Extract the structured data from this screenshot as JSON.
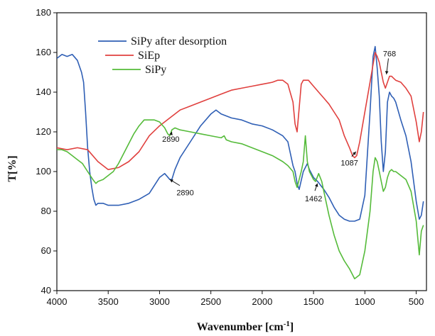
{
  "chart_data": {
    "type": "line",
    "title": "",
    "xlabel": "Wavenumber [cm",
    "xlabel_sup": "-1",
    "xlabel_close": "]",
    "ylabel": "T[%]",
    "xlim": [
      4000,
      400
    ],
    "ylim": [
      40,
      180
    ],
    "x_reversed": true,
    "xticks": [
      4000,
      3500,
      3000,
      2500,
      2000,
      1500,
      1000,
      500
    ],
    "yticks": [
      40,
      60,
      80,
      100,
      120,
      140,
      160,
      180
    ],
    "grid": false,
    "legend_position": "top-left",
    "series": [
      {
        "name": "SiPy after desorption",
        "color": "#2f5fb5",
        "x": [
          4000,
          3950,
          3900,
          3850,
          3800,
          3760,
          3740,
          3720,
          3700,
          3680,
          3660,
          3640,
          3620,
          3600,
          3550,
          3500,
          3400,
          3300,
          3200,
          3100,
          3000,
          2950,
          2900,
          2880,
          2850,
          2800,
          2700,
          2600,
          2500,
          2450,
          2400,
          2300,
          2200,
          2100,
          2000,
          1900,
          1800,
          1750,
          1700,
          1680,
          1660,
          1640,
          1600,
          1560,
          1540,
          1500,
          1460,
          1400,
          1350,
          1300,
          1250,
          1200,
          1150,
          1100,
          1050,
          1000,
          950,
          920,
          900,
          880,
          860,
          840,
          820,
          800,
          780,
          760,
          740,
          720,
          700,
          650,
          600,
          550,
          500,
          470,
          450,
          430
        ],
        "y": [
          157,
          159,
          158,
          159,
          156,
          150,
          145,
          130,
          112,
          100,
          92,
          86,
          83,
          84,
          84,
          83,
          83,
          84,
          86,
          89,
          97,
          99,
          96,
          96,
          101,
          107,
          115,
          123,
          129,
          131,
          129,
          127,
          126,
          124,
          123,
          121,
          118,
          115,
          103,
          100,
          94,
          91,
          100,
          104,
          101,
          97,
          95,
          91,
          87,
          82,
          78,
          76,
          75,
          75,
          76,
          88,
          130,
          158,
          163,
          152,
          138,
          115,
          100,
          110,
          135,
          140,
          138,
          137,
          135,
          126,
          118,
          105,
          85,
          76,
          78,
          85
        ]
      },
      {
        "name": "SiEp",
        "color": "#e0403e",
        "x": [
          4000,
          3900,
          3800,
          3700,
          3600,
          3550,
          3500,
          3400,
          3300,
          3200,
          3100,
          3000,
          2900,
          2800,
          2700,
          2600,
          2500,
          2400,
          2300,
          2200,
          2100,
          2000,
          1900,
          1850,
          1800,
          1750,
          1700,
          1680,
          1660,
          1640,
          1620,
          1600,
          1550,
          1500,
          1450,
          1400,
          1350,
          1300,
          1250,
          1200,
          1150,
          1120,
          1100,
          1080,
          1050,
          1000,
          950,
          920,
          900,
          880,
          860,
          840,
          820,
          800,
          780,
          760,
          740,
          720,
          700,
          650,
          600,
          550,
          500,
          470,
          450,
          430
        ],
        "y": [
          112,
          111,
          112,
          111,
          105,
          103,
          101,
          102,
          105,
          110,
          118,
          123,
          127,
          131,
          133,
          135,
          137,
          139,
          141,
          142,
          143,
          144,
          145,
          146,
          146,
          144,
          135,
          124,
          120,
          132,
          144,
          146,
          146,
          143,
          140,
          137,
          134,
          130,
          126,
          118,
          112,
          108,
          107,
          108,
          115,
          130,
          145,
          154,
          160,
          158,
          155,
          150,
          145,
          142,
          145,
          148,
          148,
          147,
          146,
          145,
          142,
          138,
          125,
          115,
          120,
          130
        ]
      },
      {
        "name": "SiPy",
        "color": "#55bb3a",
        "x": [
          4000,
          3950,
          3900,
          3850,
          3800,
          3750,
          3700,
          3650,
          3620,
          3600,
          3550,
          3500,
          3450,
          3400,
          3350,
          3300,
          3250,
          3200,
          3150,
          3100,
          3050,
          3000,
          2950,
          2920,
          2900,
          2880,
          2850,
          2800,
          2700,
          2600,
          2500,
          2400,
          2370,
          2350,
          2300,
          2200,
          2100,
          2000,
          1900,
          1800,
          1750,
          1700,
          1680,
          1660,
          1640,
          1620,
          1600,
          1580,
          1560,
          1540,
          1520,
          1500,
          1480,
          1450,
          1420,
          1400,
          1350,
          1300,
          1250,
          1200,
          1150,
          1100,
          1050,
          1000,
          950,
          920,
          900,
          880,
          860,
          840,
          820,
          800,
          780,
          760,
          740,
          720,
          700,
          650,
          600,
          550,
          500,
          470,
          450,
          430
        ],
        "y": [
          111,
          111,
          110,
          108,
          106,
          104,
          100,
          96,
          94,
          95,
          96,
          98,
          100,
          104,
          109,
          114,
          119,
          123,
          126,
          126,
          126,
          125,
          122,
          119,
          118,
          121,
          122,
          121,
          120,
          119,
          118,
          117,
          118,
          116,
          115,
          114,
          112,
          110,
          108,
          105,
          103,
          100,
          95,
          92,
          96,
          100,
          105,
          118,
          105,
          100,
          98,
          96,
          95,
          99,
          95,
          90,
          78,
          68,
          60,
          55,
          51,
          46,
          48,
          60,
          80,
          100,
          107,
          105,
          100,
          95,
          90,
          92,
          97,
          100,
          101,
          100,
          100,
          98,
          96,
          90,
          75,
          58,
          70,
          73
        ]
      }
    ],
    "annotations": [
      {
        "text": "2890",
        "x": 2890,
        "y": 115,
        "arrow_to": [
          2880,
          120
        ]
      },
      {
        "text": "2890",
        "x": 2750,
        "y": 88,
        "arrow_to": [
          2900,
          96
        ]
      },
      {
        "text": "1462",
        "x": 1500,
        "y": 85,
        "arrow_to": [
          1462,
          94
        ]
      },
      {
        "text": "1087",
        "x": 1150,
        "y": 103,
        "arrow_to": [
          1087,
          110
        ]
      },
      {
        "text": "768",
        "x": 760,
        "y": 158,
        "arrow_to": [
          790,
          149
        ]
      }
    ]
  }
}
